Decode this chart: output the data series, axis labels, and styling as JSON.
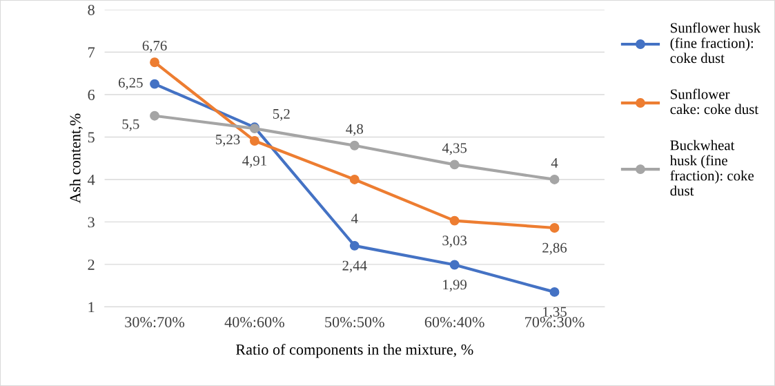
{
  "chart_data": {
    "type": "line",
    "xlabel": "Ratio of components in the mixture, %",
    "ylabel": "Ash content,%",
    "categories": [
      "30%:70%",
      "40%:60%",
      "50%:50%",
      "60%:40%",
      "70%:30%"
    ],
    "series": [
      {
        "name": "Sunflower husk\n(fine fraction):\ncoke dust",
        "color": "#4472c4",
        "values": [
          6.25,
          5.23,
          2.44,
          1.99,
          1.35
        ],
        "value_labels": [
          "6,25",
          "5,23",
          "2,44",
          "1,99",
          "1,35"
        ]
      },
      {
        "name": "Sunflower\ncake: coke dust",
        "color": "#ed7d31",
        "values": [
          6.76,
          4.91,
          4.0,
          3.03,
          2.86
        ],
        "value_labels": [
          "6,76",
          "4,91",
          "4",
          "3,03",
          "2,86"
        ]
      },
      {
        "name": "Buckwheat\nhusk (fine\nfraction): coke\ndust",
        "color": "#a5a5a5",
        "values": [
          5.5,
          5.2,
          4.8,
          4.35,
          4.0
        ],
        "value_labels": [
          "5,5",
          "5,2",
          "4,8",
          "4,35",
          "4"
        ]
      }
    ],
    "ylim": [
      1,
      8
    ],
    "yticks": [
      1,
      2,
      3,
      4,
      5,
      6,
      7,
      8
    ],
    "grid": "y",
    "legend": "right",
    "marker": "circle",
    "line_style": "solid"
  }
}
